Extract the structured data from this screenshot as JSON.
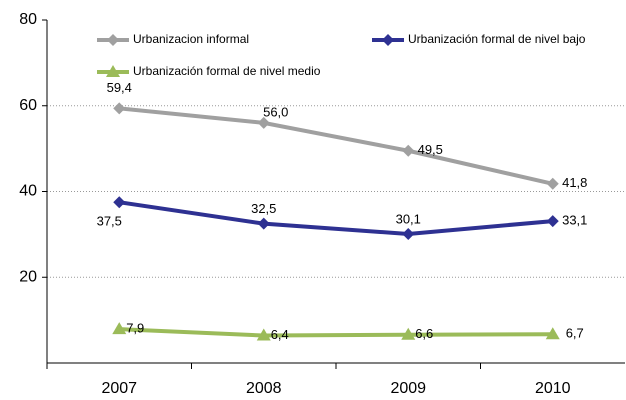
{
  "chart_data": {
    "type": "line",
    "categories": [
      "2007",
      "2008",
      "2009",
      "2010"
    ],
    "series": [
      {
        "name": "Urbanizacion informal",
        "color": "#a0a0a0",
        "marker": "diamond",
        "values": [
          59.4,
          56.0,
          49.5,
          41.8
        ],
        "value_labels": [
          "59,4",
          "56,0",
          "49,5",
          "41,8"
        ]
      },
      {
        "name": "Urbanización formal de nivel bajo",
        "color": "#2e3192",
        "marker": "diamond",
        "values": [
          37.5,
          32.5,
          30.1,
          33.1
        ],
        "value_labels": [
          "37,5",
          "32,5",
          "30,1",
          "33,1"
        ]
      },
      {
        "name": "Urbanización formal de nivel medio",
        "color": "#9bbb59",
        "marker": "triangle",
        "values": [
          7.9,
          6.4,
          6.6,
          6.7
        ],
        "value_labels": [
          "7,9",
          "6,4",
          "6,6",
          "6,7"
        ]
      }
    ],
    "ylim": [
      0,
      80
    ],
    "yticks": [
      20,
      40,
      60,
      80
    ],
    "grid": true
  }
}
